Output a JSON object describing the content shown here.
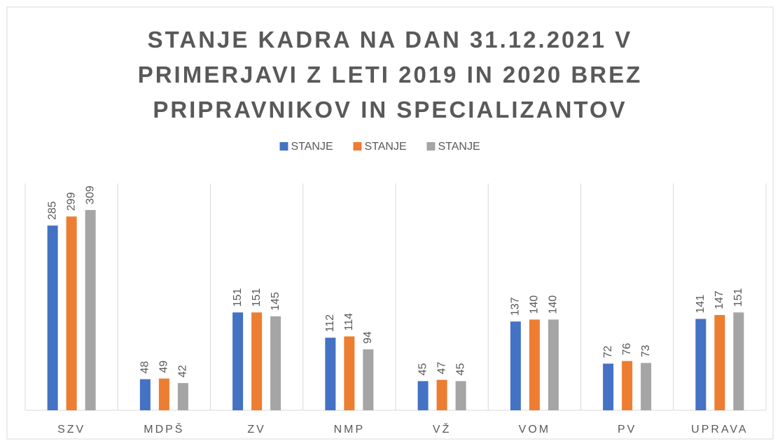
{
  "chart_data": {
    "type": "bar",
    "title": "STANJE KADRA NA DAN 31.12.2021 V PRIMERJAVI Z LETI 2019 IN 2020 BREZ PRIPRAVNIKOV IN SPECIALIZANTOV",
    "categories": [
      "SZV",
      "MDPŠ",
      "ZV",
      "NMP",
      "VŽ",
      "VOM",
      "PV",
      "UPRAVA"
    ],
    "series": [
      {
        "name": "STANJE",
        "color": "#4472c4",
        "values": [
          285,
          48,
          151,
          112,
          45,
          137,
          72,
          141
        ]
      },
      {
        "name": "STANJE",
        "color": "#ed7d31",
        "values": [
          299,
          49,
          151,
          114,
          47,
          140,
          76,
          147
        ]
      },
      {
        "name": "STANJE",
        "color": "#a5a5a5",
        "values": [
          309,
          42,
          145,
          94,
          45,
          140,
          73,
          151
        ]
      }
    ],
    "ylim": [
      0,
      350
    ],
    "legend": "top"
  }
}
